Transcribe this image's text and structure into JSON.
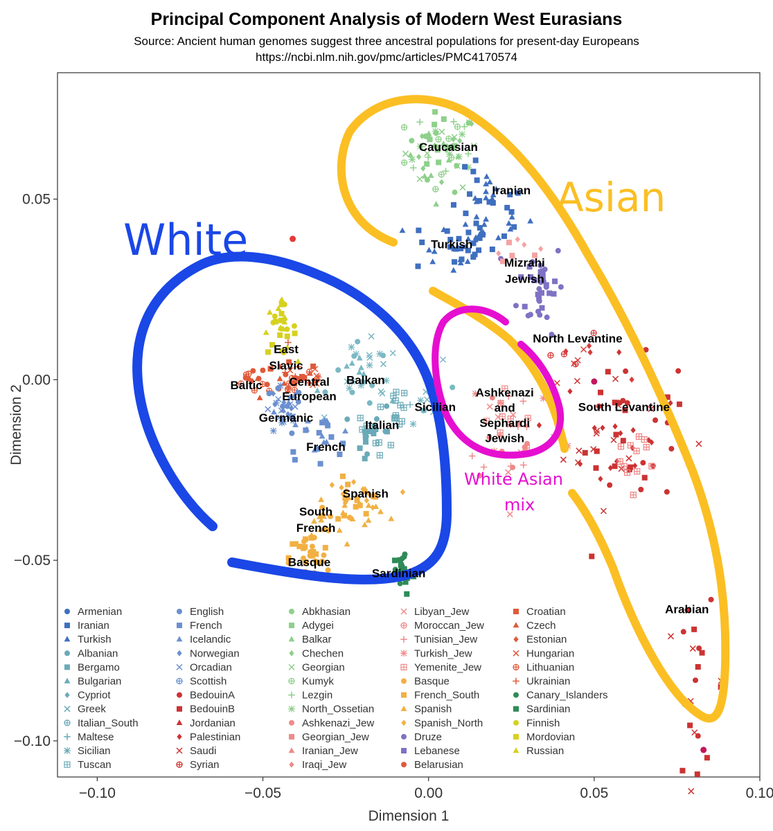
{
  "chart_data": {
    "type": "scatter",
    "title": "Principal Component Analysis of Modern West Eurasians",
    "subtitle_lines": [
      "Source: Ancient human genomes suggest three ancestral populations for present-day Europeans",
      "https://ncbi.nlm.nih.gov/pmc/articles/PMC4170574"
    ],
    "xlabel": "Dimension 1",
    "ylabel": "Dimension 2",
    "xlim": [
      -0.112,
      0.1
    ],
    "ylim": [
      -0.11,
      0.085
    ],
    "x_ticks": [
      -0.1,
      -0.05,
      0.0,
      0.05,
      0.1
    ],
    "x_tick_labels": [
      "−0.10",
      "−0.05",
      "0.00",
      "0.05",
      "0.10"
    ],
    "y_ticks": [
      0.05,
      0.0,
      -0.05,
      -0.1
    ],
    "y_tick_labels": [
      "0.05",
      "0.00",
      "−0.05",
      "−0.10"
    ],
    "grid": false,
    "legend_position": "bottom-inside",
    "cluster_labels": [
      {
        "text": "Caucasian",
        "x": 0.006,
        "y": 0.0645
      },
      {
        "text": "Iranian",
        "x": 0.025,
        "y": 0.0525
      },
      {
        "text": "Turkish",
        "x": 0.007,
        "y": 0.0375
      },
      {
        "text": "Mizrahi",
        "x": 0.029,
        "y": 0.0325
      },
      {
        "text": "Jewish",
        "x": 0.029,
        "y": 0.028
      },
      {
        "text": "North Levantine",
        "x": 0.045,
        "y": 0.0115
      },
      {
        "text": "East",
        "x": -0.043,
        "y": 0.0085
      },
      {
        "text": "Slavic",
        "x": -0.043,
        "y": 0.004
      },
      {
        "text": "Central",
        "x": -0.036,
        "y": -0.0005
      },
      {
        "text": "European",
        "x": -0.036,
        "y": -0.0045
      },
      {
        "text": "Baltic",
        "x": -0.055,
        "y": -0.0015
      },
      {
        "text": "Balkan",
        "x": -0.019,
        "y": 0.0
      },
      {
        "text": "Germanic",
        "x": -0.043,
        "y": -0.0105
      },
      {
        "text": "Sicilian",
        "x": 0.002,
        "y": -0.0075
      },
      {
        "text": "Italian",
        "x": -0.014,
        "y": -0.0125
      },
      {
        "text": "French",
        "x": -0.031,
        "y": -0.0185
      },
      {
        "text": "Ashkenazi",
        "x": 0.023,
        "y": -0.0035
      },
      {
        "text": "and",
        "x": 0.023,
        "y": -0.0077
      },
      {
        "text": "Sephardi",
        "x": 0.023,
        "y": -0.0119
      },
      {
        "text": "Jewish",
        "x": 0.023,
        "y": -0.0161
      },
      {
        "text": "South Levantine",
        "x": 0.059,
        "y": -0.0075
      },
      {
        "text": "Spanish",
        "x": -0.019,
        "y": -0.0315
      },
      {
        "text": "South",
        "x": -0.034,
        "y": -0.0365
      },
      {
        "text": "French",
        "x": -0.034,
        "y": -0.041
      },
      {
        "text": "Basque",
        "x": -0.036,
        "y": -0.0505
      },
      {
        "text": "Sardinian",
        "x": -0.009,
        "y": -0.0535
      },
      {
        "text": "Arabian",
        "x": 0.078,
        "y": -0.0635
      }
    ],
    "outlier_points": [
      {
        "x": -0.041,
        "y": 0.039,
        "color": "#e53935"
      },
      {
        "x": 0.05,
        "y": -0.0005,
        "color": "#c2185b"
      },
      {
        "x": 0.083,
        "y": -0.1025,
        "color": "#c2185b"
      }
    ],
    "clusters": [
      {
        "name": "Caucasian",
        "color": "#8ed08b",
        "cx": 0.004,
        "cy": 0.063,
        "sx": 0.0055,
        "sy": 0.0055,
        "n": 70,
        "shapes": [
          "circle",
          "square",
          "triangle",
          "diamond",
          "cross",
          "circleplus",
          "plus",
          "star"
        ]
      },
      {
        "name": "Iranian",
        "color": "#3f6fbf",
        "cx": 0.018,
        "cy": 0.047,
        "sx": 0.006,
        "sy": 0.0055,
        "n": 40,
        "shapes": [
          "square",
          "triangle"
        ]
      },
      {
        "name": "Turkish",
        "color": "#3f6fbf",
        "cx": 0.007,
        "cy": 0.037,
        "sx": 0.0065,
        "sy": 0.004,
        "n": 35,
        "shapes": [
          "triangle",
          "square"
        ]
      },
      {
        "name": "Mizrahi Jewish",
        "color": "#7e72c4",
        "cx": 0.034,
        "cy": 0.026,
        "sx": 0.0035,
        "sy": 0.0065,
        "n": 35,
        "shapes": [
          "circle",
          "square"
        ]
      },
      {
        "name": "Mizrahi Jewish pink",
        "color": "#f4a3a3",
        "cx": 0.026,
        "cy": 0.037,
        "sx": 0.0035,
        "sy": 0.002,
        "n": 8,
        "shapes": [
          "square",
          "diamond"
        ]
      },
      {
        "name": "North Levantine",
        "color": "#d63c3c",
        "cx": 0.045,
        "cy": 0.006,
        "sx": 0.006,
        "sy": 0.003,
        "n": 12,
        "shapes": [
          "circleplus",
          "cross",
          "diamond"
        ]
      },
      {
        "name": "South Levantine",
        "color": "#cc3333",
        "cx": 0.058,
        "cy": -0.015,
        "sx": 0.0085,
        "sy": 0.01,
        "n": 65,
        "shapes": [
          "diamond",
          "circle",
          "square",
          "cross"
        ]
      },
      {
        "name": "South Levantine pink",
        "color": "#f08080",
        "cx": 0.062,
        "cy": -0.022,
        "sx": 0.004,
        "sy": 0.008,
        "n": 12,
        "shapes": [
          "grid"
        ]
      },
      {
        "name": "Arabian",
        "color": "#cc3333",
        "cx": 0.081,
        "cy": -0.085,
        "sx": 0.0045,
        "sy": 0.011,
        "n": 22,
        "shapes": [
          "square",
          "circle",
          "cross"
        ]
      },
      {
        "name": "East Slavic",
        "color": "#d6d11f",
        "cx": -0.045,
        "cy": 0.014,
        "sx": 0.0025,
        "sy": 0.0035,
        "n": 28,
        "shapes": [
          "triangle",
          "circle",
          "square"
        ]
      },
      {
        "name": "Central European",
        "color": "#e05a3a",
        "cx": -0.04,
        "cy": 0.0005,
        "sx": 0.0055,
        "sy": 0.003,
        "n": 42,
        "shapes": [
          "circle",
          "square",
          "triangle",
          "cross",
          "plus",
          "circleplus"
        ]
      },
      {
        "name": "Baltic",
        "color": "#e05a3a",
        "cx": -0.053,
        "cy": 0.0,
        "sx": 0.003,
        "sy": 0.002,
        "n": 10,
        "shapes": [
          "circleplus",
          "circle"
        ]
      },
      {
        "name": "Germanic",
        "color": "#6b90d0",
        "cx": -0.044,
        "cy": -0.009,
        "sx": 0.003,
        "sy": 0.0035,
        "n": 35,
        "shapes": [
          "circle",
          "star",
          "cross",
          "diamond",
          "triangle"
        ]
      },
      {
        "name": "Balkan",
        "color": "#7ab8c4",
        "cx": -0.019,
        "cy": 0.001,
        "sx": 0.0055,
        "sy": 0.0045,
        "n": 35,
        "shapes": [
          "triangle",
          "circle",
          "cross",
          "star"
        ]
      },
      {
        "name": "Italian",
        "color": "#6aaab8",
        "cx": -0.016,
        "cy": -0.015,
        "sx": 0.003,
        "sy": 0.004,
        "n": 25,
        "shapes": [
          "square",
          "circle",
          "grid"
        ]
      },
      {
        "name": "Italian grid",
        "color": "#6aaab8",
        "cx": -0.01,
        "cy": -0.007,
        "sx": 0.002,
        "sy": 0.0025,
        "n": 12,
        "shapes": [
          "grid"
        ]
      },
      {
        "name": "Sicilian",
        "color": "#7ab8c4",
        "cx": 0.002,
        "cy": -0.004,
        "sx": 0.004,
        "sy": 0.004,
        "n": 14,
        "shapes": [
          "cross",
          "circle",
          "plus",
          "star"
        ]
      },
      {
        "name": "French",
        "color": "#6b90d0",
        "cx": -0.033,
        "cy": -0.016,
        "sx": 0.0055,
        "sy": 0.003,
        "n": 22,
        "shapes": [
          "square",
          "triangle"
        ]
      },
      {
        "name": "Spanish",
        "color": "#f2b043",
        "cx": -0.022,
        "cy": -0.0335,
        "sx": 0.0045,
        "sy": 0.003,
        "n": 40,
        "shapes": [
          "triangle",
          "diamond",
          "square"
        ]
      },
      {
        "name": "South French",
        "color": "#f2b043",
        "cx": -0.032,
        "cy": -0.0395,
        "sx": 0.0035,
        "sy": 0.003,
        "n": 14,
        "shapes": [
          "triangle",
          "circle"
        ]
      },
      {
        "name": "Basque",
        "color": "#f2b043",
        "cx": -0.036,
        "cy": -0.0495,
        "sx": 0.003,
        "sy": 0.0035,
        "n": 28,
        "shapes": [
          "circle",
          "square"
        ]
      },
      {
        "name": "Sardinian",
        "color": "#2e8b57",
        "cx": -0.008,
        "cy": -0.053,
        "sx": 0.002,
        "sy": 0.0035,
        "n": 25,
        "shapes": [
          "square",
          "circle"
        ]
      },
      {
        "name": "Ashkenazi and Sephardi Jewish",
        "color": "#f08a8a",
        "cx": 0.026,
        "cy": -0.013,
        "sx": 0.0075,
        "sy": 0.0085,
        "n": 40,
        "shapes": [
          "cross",
          "plus",
          "star",
          "grid",
          "circle"
        ]
      }
    ],
    "legend_columns": [
      [
        {
          "name": "Armenian",
          "color": "#3f6fbf",
          "shape": "circle"
        },
        {
          "name": "Iranian",
          "color": "#3f6fbf",
          "shape": "square"
        },
        {
          "name": "Turkish",
          "color": "#3f6fbf",
          "shape": "triangle"
        },
        {
          "name": "Albanian",
          "color": "#6aaab8",
          "shape": "circle"
        },
        {
          "name": "Bergamo",
          "color": "#6aaab8",
          "shape": "square"
        },
        {
          "name": "Bulgarian",
          "color": "#6aaab8",
          "shape": "triangle"
        },
        {
          "name": "Cypriot",
          "color": "#6aaab8",
          "shape": "diamond"
        },
        {
          "name": "Greek",
          "color": "#6aaab8",
          "shape": "cross"
        },
        {
          "name": "Italian_South",
          "color": "#6aaab8",
          "shape": "circleplus"
        },
        {
          "name": "Maltese",
          "color": "#6aaab8",
          "shape": "plus"
        },
        {
          "name": "Sicilian",
          "color": "#6aaab8",
          "shape": "star"
        },
        {
          "name": "Tuscan",
          "color": "#6aaab8",
          "shape": "grid"
        }
      ],
      [
        {
          "name": "English",
          "color": "#6b90d0",
          "shape": "circle"
        },
        {
          "name": "French",
          "color": "#6b90d0",
          "shape": "square"
        },
        {
          "name": "Icelandic",
          "color": "#6b90d0",
          "shape": "triangle"
        },
        {
          "name": "Norwegian",
          "color": "#6b90d0",
          "shape": "diamond"
        },
        {
          "name": "Orcadian",
          "color": "#6b90d0",
          "shape": "cross"
        },
        {
          "name": "Scottish",
          "color": "#6b90d0",
          "shape": "circleplus"
        },
        {
          "name": "BedouinA",
          "color": "#cc3333",
          "shape": "circle"
        },
        {
          "name": "BedouinB",
          "color": "#cc3333",
          "shape": "square"
        },
        {
          "name": "Jordanian",
          "color": "#cc3333",
          "shape": "triangle"
        },
        {
          "name": "Palestinian",
          "color": "#cc3333",
          "shape": "diamond"
        },
        {
          "name": "Saudi",
          "color": "#cc3333",
          "shape": "cross"
        },
        {
          "name": "Syrian",
          "color": "#cc3333",
          "shape": "circleplus"
        }
      ],
      [
        {
          "name": "Abkhasian",
          "color": "#8ed08b",
          "shape": "circle"
        },
        {
          "name": "Adygei",
          "color": "#8ed08b",
          "shape": "square"
        },
        {
          "name": "Balkar",
          "color": "#8ed08b",
          "shape": "triangle"
        },
        {
          "name": "Chechen",
          "color": "#8ed08b",
          "shape": "diamond"
        },
        {
          "name": "Georgian",
          "color": "#8ed08b",
          "shape": "cross"
        },
        {
          "name": "Kumyk",
          "color": "#8ed08b",
          "shape": "circleplus"
        },
        {
          "name": "Lezgin",
          "color": "#8ed08b",
          "shape": "plus"
        },
        {
          "name": "North_Ossetian",
          "color": "#8ed08b",
          "shape": "star"
        },
        {
          "name": "Ashkenazi_Jew",
          "color": "#f08a8a",
          "shape": "circle"
        },
        {
          "name": "Georgian_Jew",
          "color": "#f08a8a",
          "shape": "square"
        },
        {
          "name": "Iranian_Jew",
          "color": "#f08a8a",
          "shape": "triangle"
        },
        {
          "name": "Iraqi_Jew",
          "color": "#f08a8a",
          "shape": "diamond"
        }
      ],
      [
        {
          "name": "Libyan_Jew",
          "color": "#f08a8a",
          "shape": "cross"
        },
        {
          "name": "Moroccan_Jew",
          "color": "#f08a8a",
          "shape": "circleplus"
        },
        {
          "name": "Tunisian_Jew",
          "color": "#f08a8a",
          "shape": "plus"
        },
        {
          "name": "Turkish_Jew",
          "color": "#f08a8a",
          "shape": "star"
        },
        {
          "name": "Yemenite_Jew",
          "color": "#f08a8a",
          "shape": "grid"
        },
        {
          "name": "Basque",
          "color": "#f2b043",
          "shape": "circle"
        },
        {
          "name": "French_South",
          "color": "#f2b043",
          "shape": "square"
        },
        {
          "name": "Spanish",
          "color": "#f2b043",
          "shape": "triangle"
        },
        {
          "name": "Spanish_North",
          "color": "#f2b043",
          "shape": "diamond"
        },
        {
          "name": "Druze",
          "color": "#7e72c4",
          "shape": "circle"
        },
        {
          "name": "Lebanese",
          "color": "#7e72c4",
          "shape": "square"
        },
        {
          "name": "Belarusian",
          "color": "#e05a3a",
          "shape": "circle"
        }
      ],
      [
        {
          "name": "Croatian",
          "color": "#e05a3a",
          "shape": "square"
        },
        {
          "name": "Czech",
          "color": "#e05a3a",
          "shape": "triangle"
        },
        {
          "name": "Estonian",
          "color": "#e05a3a",
          "shape": "diamond"
        },
        {
          "name": "Hungarian",
          "color": "#e05a3a",
          "shape": "cross"
        },
        {
          "name": "Lithuanian",
          "color": "#e05a3a",
          "shape": "circleplus"
        },
        {
          "name": "Ukrainian",
          "color": "#e05a3a",
          "shape": "plus"
        },
        {
          "name": "Canary_Islanders",
          "color": "#2e8b57",
          "shape": "circle"
        },
        {
          "name": "Sardinian",
          "color": "#2e8b57",
          "shape": "square"
        },
        {
          "name": "Finnish",
          "color": "#d6d11f",
          "shape": "circle"
        },
        {
          "name": "Mordovian",
          "color": "#d6d11f",
          "shape": "square"
        },
        {
          "name": "Russian",
          "color": "#d6d11f",
          "shape": "triangle"
        }
      ]
    ],
    "annotations": [
      {
        "text": "White",
        "color": "#1a47e6"
      },
      {
        "text": "Asian",
        "color": "#fbbf24"
      },
      {
        "text": "White Asian",
        "color": "#e60fd0"
      },
      {
        "text": "mix",
        "color": "#e60fd0"
      }
    ]
  }
}
